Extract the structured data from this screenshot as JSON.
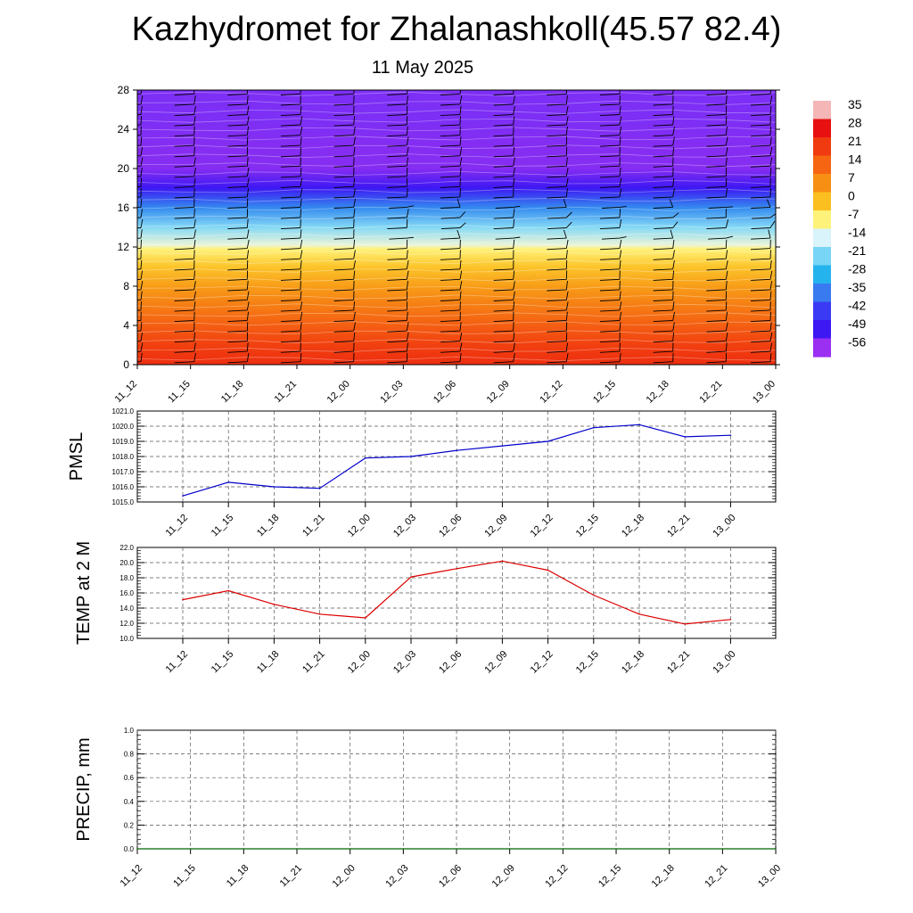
{
  "header": {
    "title": "Kazhydromet for Zhalanashkoll(45.57 82.4)",
    "subtitle": "11 May 2025"
  },
  "chart_data": [
    {
      "id": "cross-section",
      "type": "heatmap",
      "title": "",
      "x_tick_labels": [
        "11_12",
        "11_15",
        "11_18",
        "11_21",
        "12_00",
        "12_03",
        "12_06",
        "12_09",
        "12_12",
        "12_15",
        "12_18",
        "12_21",
        "13_00"
      ],
      "y_tick_labels": [
        "0",
        "4",
        "8",
        "12",
        "16",
        "20",
        "24",
        "28"
      ],
      "ylim": [
        0,
        28
      ],
      "colorbar": {
        "labels": [
          "35",
          "28",
          "21",
          "14",
          "7",
          "0",
          "-7",
          "-14",
          "-21",
          "-28",
          "-35",
          "-42",
          "-49",
          "-56"
        ],
        "colors": [
          "#f4b6b6",
          "#e81010",
          "#f03a10",
          "#f56512",
          "#f78f15",
          "#fbbf20",
          "#fff27a",
          "#d9f4fb",
          "#79d5f5",
          "#25b3ee",
          "#3a7af0",
          "#3a3af5",
          "#3d18f3",
          "#9b2ff2"
        ]
      },
      "temperature_profile_by_level": [
        {
          "level": 0,
          "value": 30
        },
        {
          "level": 2,
          "value": 27
        },
        {
          "level": 4,
          "value": 22
        },
        {
          "level": 6,
          "value": 17
        },
        {
          "level": 8,
          "value": 12
        },
        {
          "level": 10,
          "value": 6
        },
        {
          "level": 11.8,
          "value": 0
        },
        {
          "level": 12.2,
          "value": -10
        },
        {
          "level": 14,
          "value": -20
        },
        {
          "level": 16,
          "value": -33
        },
        {
          "level": 18,
          "value": -50
        },
        {
          "level": 20,
          "value": -58
        },
        {
          "level": 22,
          "value": -58
        },
        {
          "level": 25,
          "value": -55
        },
        {
          "level": 28,
          "value": -55
        }
      ],
      "wind_barbs": "shown",
      "grid": false
    },
    {
      "id": "pmsl",
      "type": "line",
      "ylabel": "PMSL",
      "categories": [
        "11_12",
        "11_15",
        "11_18",
        "11_21",
        "12_00",
        "12_03",
        "12_06",
        "12_09",
        "12_12",
        "12_15",
        "12_18",
        "12_21",
        "13_00"
      ],
      "y_tick_labels": [
        "1015.0",
        "1016.0",
        "1017.0",
        "1018.0",
        "1019.0",
        "1020.0",
        "1021.0"
      ],
      "ylim": [
        1015,
        1021
      ],
      "series": [
        {
          "color": "#0000cc",
          "values": [
            1015.4,
            1016.3,
            1016.0,
            1015.9,
            1017.9,
            1018.0,
            1018.4,
            1018.7,
            1019.0,
            1019.9,
            1020.1,
            1019.3,
            1019.4
          ]
        }
      ],
      "grid": true
    },
    {
      "id": "temp2m",
      "type": "line",
      "ylabel": "TEMP at 2 M",
      "categories": [
        "11_12",
        "11_15",
        "11_18",
        "11_21",
        "12_00",
        "12_03",
        "12_06",
        "12_09",
        "12_12",
        "12_15",
        "12_18",
        "12_21",
        "13_00"
      ],
      "y_tick_labels": [
        "10.0",
        "12.0",
        "14.0",
        "16.0",
        "18.0",
        "20.0",
        "22.0"
      ],
      "ylim": [
        10,
        22
      ],
      "series": [
        {
          "color": "#dd0000",
          "values": [
            15.1,
            16.3,
            14.5,
            13.2,
            12.7,
            18.1,
            19.2,
            20.2,
            19.0,
            15.7,
            13.2,
            11.9,
            12.5
          ]
        }
      ],
      "grid": true
    },
    {
      "id": "precip",
      "type": "line",
      "ylabel": "PRECIP, mm",
      "categories": [
        "11_12",
        "11_15",
        "11_18",
        "11_21",
        "12_00",
        "12_03",
        "12_06",
        "12_09",
        "12_12",
        "12_15",
        "12_18",
        "12_21",
        "13_00"
      ],
      "y_tick_labels": [
        "0.0",
        "0.2",
        "0.4",
        "0.6",
        "0.8",
        "1.0"
      ],
      "ylim": [
        0,
        1
      ],
      "series": [
        {
          "color": "#006600",
          "values": [
            0,
            0,
            0,
            0,
            0,
            0,
            0,
            0,
            0,
            0,
            0,
            0,
            0
          ]
        }
      ],
      "grid": true
    }
  ]
}
